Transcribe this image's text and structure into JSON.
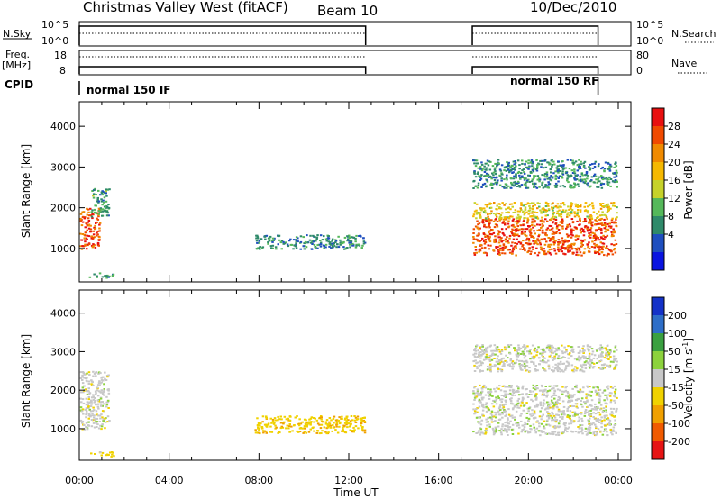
{
  "header": {
    "station": "Christmas Valley West (fitACF)",
    "beam": "Beam 10",
    "date": "10/Dec/2010"
  },
  "top_panels": {
    "nsky_label": "N.Sky",
    "nsky_ticks": [
      "10^5",
      "10^0"
    ],
    "nsearch_label": "N.Search",
    "nsearch_ticks": [
      "10^5",
      "10^0"
    ],
    "freq_label": "Freq.",
    "freq_unit": "[MHz]",
    "freq_ticks": [
      "18",
      "8"
    ],
    "nave_label": "Nave",
    "nave_ticks": [
      "80",
      "0"
    ],
    "cpid_label": "CPID",
    "cpid_segments": [
      {
        "label": "normal 150 IF",
        "start_h": 0.0,
        "end_h": 12.75
      },
      {
        "label": "normal 150 RF",
        "start_h": 17.5,
        "end_h": 23.1
      }
    ]
  },
  "colorbars": {
    "power": {
      "label": "Power [dB]",
      "ticks": [
        "28",
        "24",
        "20",
        "16",
        "12",
        "8",
        "4"
      ],
      "colors": [
        "#0a14e0",
        "#1f4fbf",
        "#2f8a6a",
        "#55b85a",
        "#c6d22a",
        "#f5b800",
        "#f08a00",
        "#f04a00",
        "#e81010"
      ]
    },
    "velocity": {
      "label": "Velocity [m s",
      "label_sup": "-1",
      "label_end": "]",
      "ticks": [
        "200",
        "100",
        "50",
        "15",
        "-15",
        "-50",
        "-100",
        "-200"
      ],
      "colors": [
        "#1432c8",
        "#2e6ec8",
        "#3aa040",
        "#8cd23c",
        "#c8c8c8",
        "#f0d200",
        "#f0a000",
        "#f05a00",
        "#e61414"
      ]
    }
  },
  "chart_data": [
    {
      "type": "heatmap",
      "name": "power",
      "xlabel": "",
      "ylabel": "Slant Range [km]",
      "xlim": [
        0,
        24
      ],
      "ylim": [
        180,
        4600
      ],
      "y_ticks": [
        "1000",
        "2000",
        "3000",
        "4000"
      ],
      "y_tick_values": [
        1000,
        2000,
        3000,
        4000
      ],
      "echo_regions": [
        {
          "t0": 0.0,
          "t1": 0.9,
          "r0": 1000,
          "r1": 2000,
          "level": 28
        },
        {
          "t0": 0.5,
          "t1": 1.3,
          "r0": 1800,
          "r1": 2500,
          "level": 10
        },
        {
          "t0": 0.4,
          "t1": 1.5,
          "r0": 300,
          "r1": 420,
          "level": 10
        },
        {
          "t0": 7.8,
          "t1": 12.7,
          "r0": 1000,
          "r1": 1350,
          "level": 8
        },
        {
          "t0": 17.5,
          "t1": 23.9,
          "r0": 850,
          "r1": 1750,
          "level": 28
        },
        {
          "t0": 17.5,
          "t1": 23.9,
          "r0": 1750,
          "r1": 2150,
          "level": 18
        },
        {
          "t0": 17.5,
          "t1": 23.9,
          "r0": 2500,
          "r1": 3200,
          "level": 8
        }
      ]
    },
    {
      "type": "heatmap",
      "name": "velocity",
      "xlabel": "Time UT",
      "ylabel": "Slant Range [km]",
      "xlim": [
        0,
        24
      ],
      "ylim": [
        180,
        4600
      ],
      "x_ticks": [
        "00:00",
        "04:00",
        "08:00",
        "12:00",
        "16:00",
        "20:00",
        "00:00"
      ],
      "x_tick_values": [
        0,
        4,
        8,
        12,
        16,
        20,
        24
      ],
      "y_ticks": [
        "1000",
        "2000",
        "3000",
        "4000"
      ],
      "y_tick_values": [
        1000,
        2000,
        3000,
        4000
      ],
      "echo_regions": [
        {
          "t0": 0.0,
          "t1": 1.3,
          "r0": 1000,
          "r1": 2500,
          "velocity": 0
        },
        {
          "t0": 0.4,
          "t1": 1.5,
          "r0": 300,
          "r1": 420,
          "velocity": -30
        },
        {
          "t0": 7.8,
          "t1": 12.7,
          "r0": 900,
          "r1": 1350,
          "velocity": -40
        },
        {
          "t0": 17.5,
          "t1": 23.9,
          "r0": 850,
          "r1": 2150,
          "velocity": 0
        },
        {
          "t0": 17.5,
          "t1": 23.9,
          "r0": 2500,
          "r1": 3200,
          "velocity": 0
        }
      ]
    }
  ]
}
